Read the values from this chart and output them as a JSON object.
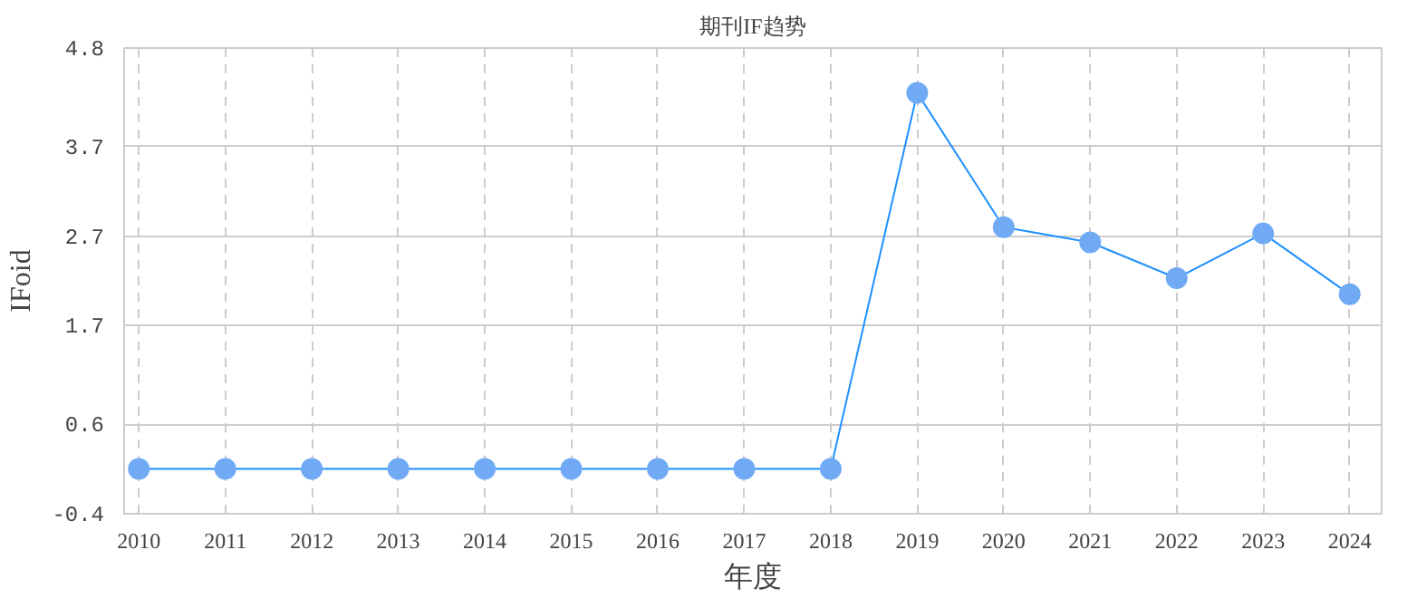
{
  "chart_data": {
    "type": "line",
    "title": "期刊IF趋势",
    "xlabel": "年度",
    "ylabel": "IFoid",
    "categories": [
      "2010",
      "2011",
      "2012",
      "2013",
      "2014",
      "2015",
      "2016",
      "2017",
      "2018",
      "2019",
      "2020",
      "2021",
      "2022",
      "2023",
      "2024"
    ],
    "series": [
      {
        "color": "#1e90ff",
        "values": [
          0.1,
          0.1,
          0.1,
          0.1,
          0.1,
          0.1,
          0.1,
          0.1,
          0.1,
          4.3,
          2.8,
          2.63,
          2.23,
          2.73,
          2.05
        ]
      }
    ],
    "ylim": [
      -0.4,
      4.8
    ],
    "yticks": [
      -0.4,
      0.6,
      1.7,
      2.7,
      3.7,
      4.8
    ],
    "grid": true,
    "marker": "circle",
    "line_style": "solid"
  }
}
